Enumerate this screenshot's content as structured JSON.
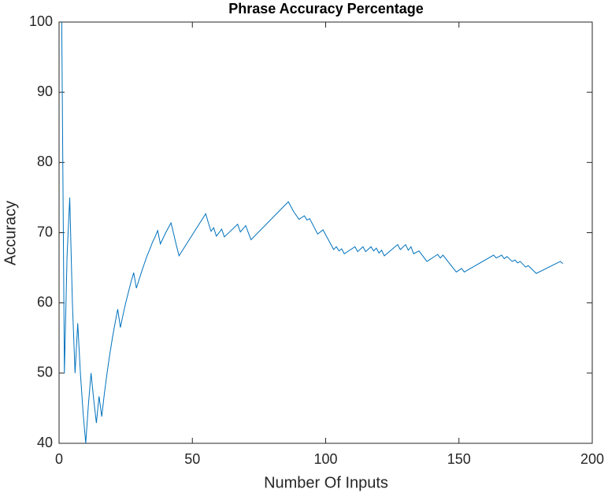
{
  "chart_data": {
    "type": "line",
    "title": "Phrase Accuracy Percentage",
    "xlabel": "Number Of Inputs",
    "ylabel": "Accuracy",
    "xlim": [
      0,
      200
    ],
    "ylim": [
      40,
      100
    ],
    "xticks": [
      0,
      50,
      100,
      150,
      200
    ],
    "yticks": [
      40,
      50,
      60,
      70,
      80,
      90,
      100
    ],
    "series": [
      {
        "name": "Accuracy",
        "color": "#0072bd",
        "x": [
          1,
          2,
          3,
          4,
          5,
          6,
          7,
          8,
          9,
          10,
          11,
          12,
          13,
          14,
          15,
          16,
          17,
          18,
          19,
          20,
          21,
          22,
          23,
          24,
          25,
          26,
          27,
          28,
          29,
          30,
          31,
          32,
          33,
          34,
          35,
          36,
          37,
          38,
          39,
          40,
          41,
          42,
          43,
          44,
          45,
          55,
          56,
          57,
          58,
          59,
          61,
          62,
          67,
          68,
          70,
          72,
          86,
          88,
          90,
          92,
          93,
          94,
          97,
          99,
          103,
          104,
          105,
          106,
          107,
          111,
          112,
          114,
          115,
          117,
          118,
          119,
          120,
          121,
          122,
          127,
          128,
          130,
          131,
          132,
          133,
          135,
          138,
          142,
          143,
          144,
          149,
          151,
          152,
          163,
          164,
          166,
          167,
          168,
          170,
          171,
          172,
          173,
          175,
          176,
          179,
          188,
          189
        ],
        "values": [
          100,
          50,
          66.7,
          75,
          60,
          50,
          57.1,
          50,
          44.4,
          40,
          45.5,
          50,
          46.2,
          42.9,
          46.7,
          43.8,
          47.1,
          50,
          52.6,
          55,
          57.1,
          59.1,
          56.5,
          58.3,
          60,
          61.5,
          63,
          64.3,
          62.1,
          63.3,
          64.5,
          65.6,
          66.7,
          67.6,
          68.6,
          69.4,
          70.3,
          68.4,
          69.2,
          70,
          70.7,
          71.4,
          69.8,
          68.2,
          66.7,
          72.7,
          71.4,
          70.2,
          70.7,
          69.5,
          70.5,
          69.4,
          71.2,
          70.1,
          71,
          69,
          74.4,
          73,
          71.9,
          72.4,
          71.8,
          72,
          69.8,
          70.4,
          67.6,
          68,
          67.4,
          67.7,
          67,
          68,
          67.3,
          68,
          67.3,
          68,
          67.4,
          67.8,
          67.1,
          67.5,
          66.7,
          68.3,
          67.6,
          68.3,
          67.5,
          68,
          67,
          67.4,
          65.9,
          66.9,
          66.4,
          66.8,
          64.4,
          64.9,
          64.4,
          66.8,
          66.4,
          66.8,
          66.3,
          66.6,
          65.9,
          66.1,
          65.7,
          65.9,
          65.1,
          65.3,
          64.2,
          65.9,
          65.6
        ]
      }
    ]
  }
}
